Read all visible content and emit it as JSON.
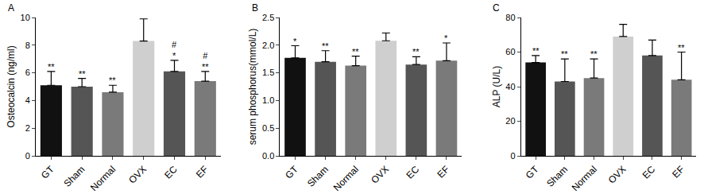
{
  "chart_data": [
    {
      "type": "bar",
      "title": "A",
      "y_label": "Osteocalcin (ng/ml)",
      "categories": [
        "GT",
        "Sham",
        "Normal",
        "OVX",
        "EC",
        "EF"
      ],
      "values": [
        5.1,
        5.0,
        4.6,
        8.3,
        6.1,
        5.4
      ],
      "errors": [
        1.0,
        0.6,
        0.5,
        1.6,
        0.8,
        0.7
      ],
      "significance": [
        [
          "**"
        ],
        [
          "**"
        ],
        [
          "**"
        ],
        [],
        [
          "#",
          "*"
        ],
        [
          "#",
          "**"
        ]
      ],
      "colors": [
        "#111111",
        "#555555",
        "#7a7a7a",
        "#cfcfcf",
        "#555555",
        "#7a7a7a"
      ],
      "ylim": [
        0,
        10
      ],
      "yticks": [
        0,
        2,
        4,
        6,
        8,
        10
      ],
      "grid": false
    },
    {
      "type": "bar",
      "title": "B",
      "y_label": "serum phosphorus(mmol/L)",
      "categories": [
        "GT",
        "Sham",
        "Normal",
        "OVX",
        "EC",
        "EF"
      ],
      "values": [
        1.77,
        1.7,
        1.63,
        2.08,
        1.65,
        1.72
      ],
      "errors": [
        0.22,
        0.2,
        0.17,
        0.14,
        0.14,
        0.32
      ],
      "significance": [
        [
          "*"
        ],
        [
          "**"
        ],
        [
          "**"
        ],
        [],
        [
          "**"
        ],
        [
          "*"
        ]
      ],
      "colors": [
        "#111111",
        "#555555",
        "#7a7a7a",
        "#cfcfcf",
        "#555555",
        "#7a7a7a"
      ],
      "ylim": [
        0,
        2.5
      ],
      "yticks": [
        {
          "value": 0,
          "label": "0.0"
        },
        0.5,
        {
          "value": 1,
          "label": "1.0"
        },
        1.5,
        {
          "value": 2,
          "label": "2.0"
        },
        2.5
      ],
      "grid": false
    },
    {
      "type": "bar",
      "title": "C",
      "y_label": "ALP (U/L)",
      "categories": [
        "GT",
        "Sham",
        "Normal",
        "OVX",
        "EC",
        "EF"
      ],
      "values": [
        54,
        43,
        45,
        69,
        58,
        44
      ],
      "errors": [
        4,
        13,
        11,
        7,
        9,
        16
      ],
      "significance": [
        [
          "**"
        ],
        [
          "**"
        ],
        [
          "**"
        ],
        [],
        [],
        [
          "**"
        ]
      ],
      "colors": [
        "#111111",
        "#555555",
        "#7a7a7a",
        "#cfcfcf",
        "#555555",
        "#7a7a7a"
      ],
      "ylim": [
        0,
        80
      ],
      "yticks": [
        0,
        20,
        40,
        60,
        80
      ],
      "grid": false
    }
  ]
}
